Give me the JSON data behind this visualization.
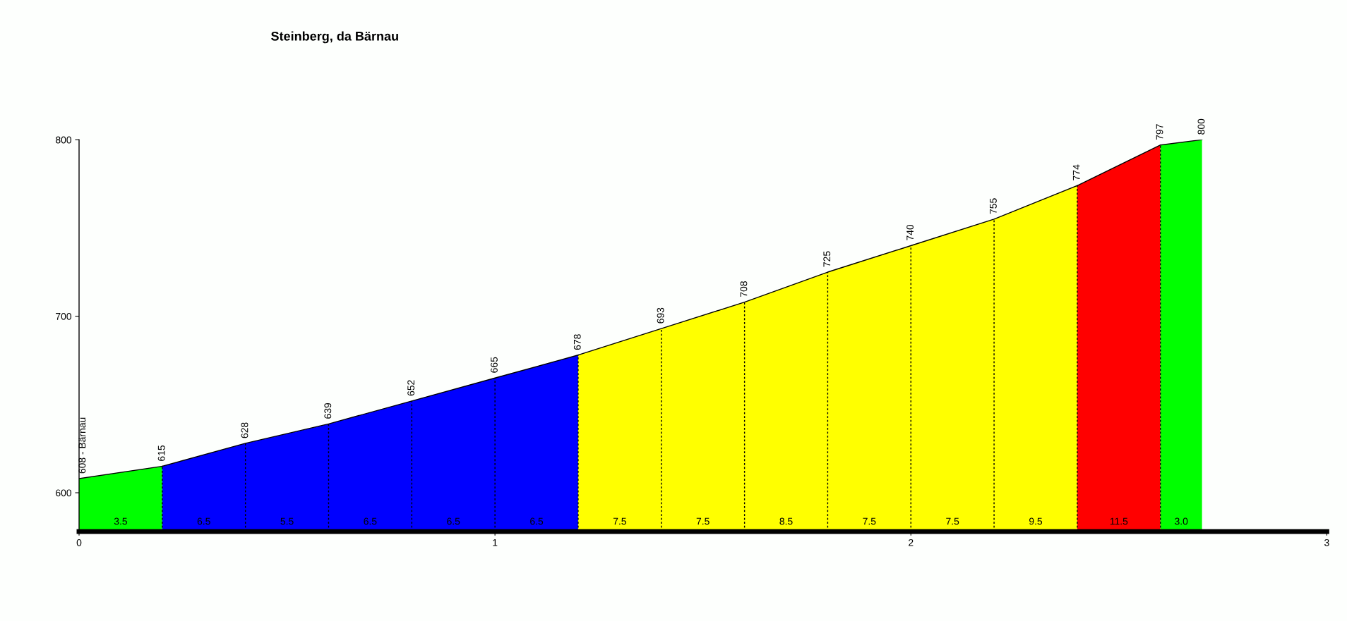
{
  "chart_data": {
    "type": "area",
    "title": "Steinberg, da Bärnau",
    "series": [
      {
        "color": "#00ff00",
        "x": [
          0,
          0.2
        ],
        "values": [
          608,
          615
        ],
        "value_labels": [
          "608 - Bärnau",
          "615"
        ]
      },
      {
        "color": "#0000ff",
        "x": [
          0.2,
          0.4,
          0.6,
          0.8,
          1.0,
          1.2
        ],
        "values": [
          615,
          628,
          639,
          652,
          665,
          678
        ],
        "value_labels": [
          null,
          "628",
          "639",
          "652",
          "665",
          "678"
        ]
      },
      {
        "color": "#ffff00",
        "x": [
          1.2,
          1.4,
          1.6,
          1.8,
          2.0,
          2.2,
          2.4
        ],
        "values": [
          678,
          693,
          708,
          725,
          740,
          755,
          774
        ],
        "value_labels": [
          null,
          "693",
          "708",
          "725",
          "740",
          "755",
          "774"
        ]
      },
      {
        "color": "#ff0000",
        "x": [
          2.4,
          2.6
        ],
        "values": [
          774,
          797
        ],
        "value_labels": [
          null,
          "797"
        ]
      },
      {
        "color": "#00ff00",
        "x": [
          2.6,
          2.7
        ],
        "values": [
          797,
          800
        ],
        "value_labels": [
          null,
          "800"
        ]
      }
    ],
    "annotations": [
      "3.5",
      "6.5",
      "5.5",
      "6.5",
      "6.5",
      "6.5",
      "7.5",
      "7.5",
      "8.5",
      "7.5",
      "7.5",
      "9.5",
      "11.5",
      "3.0"
    ],
    "xlim": [
      0,
      3
    ],
    "xticks": [
      0,
      1,
      2,
      3
    ],
    "ylim": [
      578,
      800
    ],
    "yticks": [
      600,
      700,
      800
    ]
  }
}
